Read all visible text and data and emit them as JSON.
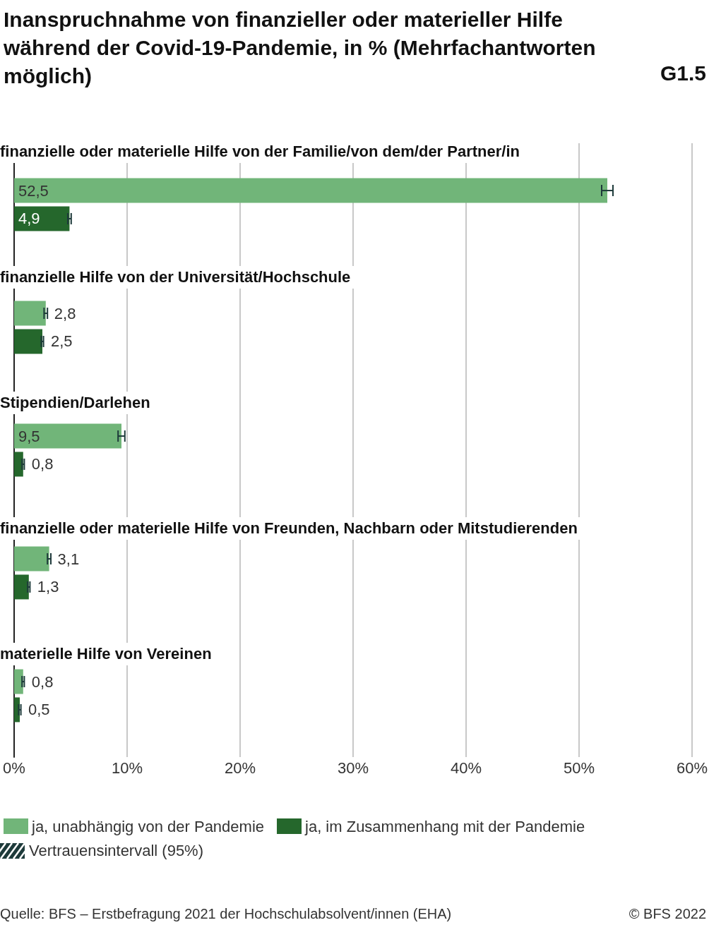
{
  "chart_data": {
    "type": "bar",
    "orientation": "horizontal",
    "title": "Inanspruchnahme von finanzieller oder materieller Hilfe während der Covid-19-Pandemie, in % (Mehrfachantworten möglich)",
    "categories": [
      "finanzielle oder materielle Hilfe von der Familie/von dem/der Partner/in",
      "finanzielle Hilfe von der Universität/Hochschule",
      "Stipendien/Darlehen",
      "finanzielle oder materielle Hilfe von Freunden, Nachbarn oder Mitstudierenden",
      "materielle Hilfe von Vereinen"
    ],
    "series": [
      {
        "name": "ja, unabhängig von der Pandemie",
        "color": "#71b579",
        "values": [
          52.5,
          2.8,
          9.5,
          3.1,
          0.8
        ],
        "value_labels": [
          "52,5",
          "2,8",
          "9,5",
          "3,1",
          "0,8"
        ],
        "errors": [
          0.5,
          0.15,
          0.3,
          0.15,
          0.1
        ]
      },
      {
        "name": "ja, im Zusammenhang mit der Pandemie",
        "color": "#25672c",
        "values": [
          4.9,
          2.5,
          0.8,
          1.3,
          0.5
        ],
        "value_labels": [
          "4,9",
          "2,5",
          "0,8",
          "1,3",
          "0,5"
        ],
        "errors": [
          0.15,
          0.1,
          0.1,
          0.1,
          0.1
        ]
      }
    ],
    "xlim": [
      0,
      60
    ],
    "xticks": [
      {
        "value": 0,
        "label": "0%"
      },
      {
        "value": 10,
        "label": "10%"
      },
      {
        "value": 20,
        "label": "20%"
      },
      {
        "value": 30,
        "label": "30%"
      },
      {
        "value": 40,
        "label": "40%"
      },
      {
        "value": 50,
        "label": "50%"
      },
      {
        "value": 60,
        "label": "60%"
      }
    ],
    "grid": "x",
    "legend": "bottom",
    "annotations": [
      "G1.5",
      "Vertrauensintervall (95%)",
      "Quelle: BFS – Erstbefragung 2021 der Hochschulabsolvent/innen (EHA)",
      "© BFS 2022"
    ]
  }
}
